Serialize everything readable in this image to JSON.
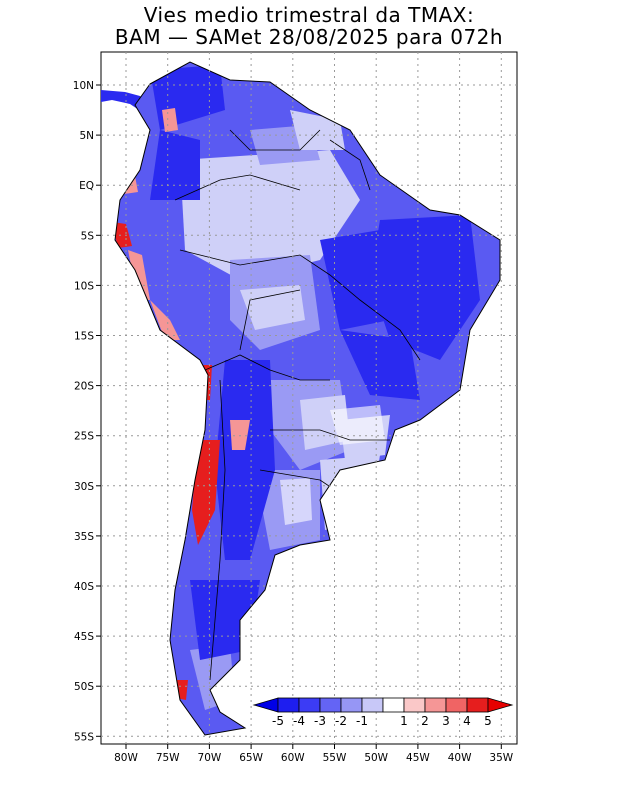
{
  "title": {
    "line1": "Vies medio trimestral da TMAX:",
    "line2": "BAM — SAMet 28/08/2025  para 072h"
  },
  "axes": {
    "lat_labels": [
      "10N",
      "5N",
      "EQ",
      "5S",
      "10S",
      "15S",
      "20S",
      "25S",
      "30S",
      "35S",
      "40S",
      "45S",
      "50S",
      "55S"
    ],
    "lon_labels": [
      "80W",
      "75W",
      "70W",
      "65W",
      "60W",
      "55W",
      "50W",
      "45W",
      "40W",
      "35W"
    ]
  },
  "colorbar": {
    "labels": [
      "-5",
      "-4",
      "-3",
      "-2",
      "-1",
      "1",
      "2",
      "3",
      "4",
      "5"
    ],
    "colors": [
      "#1e1ef0",
      "#3c3cf5",
      "#6464f5",
      "#9696f5",
      "#c8c8f8",
      "#ffffff",
      "#fac8c8",
      "#f59696",
      "#f06464",
      "#e61e1e"
    ],
    "under_color": "#0000e6",
    "over_color": "#e60000"
  },
  "map_colors": {
    "ocean": "#ffffff",
    "strong_blue": "#2a2af0",
    "mid_blue": "#5a5af2",
    "light_blue": "#9a9af4",
    "pale_blue": "#cfd0f8",
    "red": "#e61e1e",
    "pink": "#f59696"
  }
}
